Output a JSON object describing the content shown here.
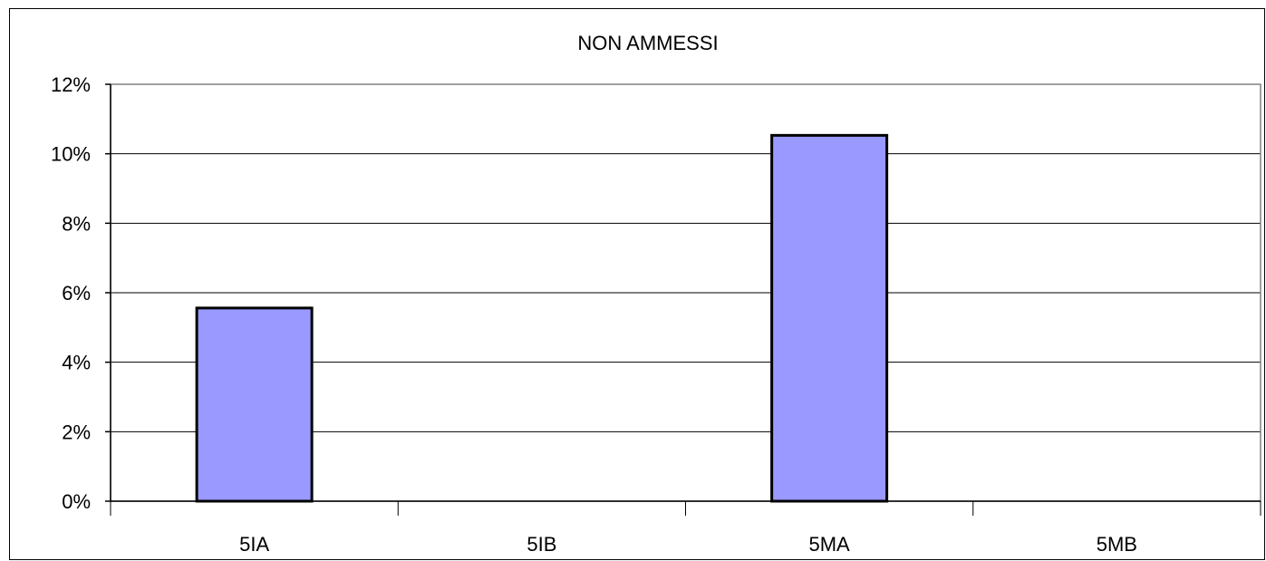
{
  "chart_data": {
    "type": "bar",
    "title": "NON AMMESSI",
    "xlabel": "",
    "ylabel": "",
    "categories": [
      "5IA",
      "5IB",
      "5MA",
      "5MB"
    ],
    "values": [
      5.56,
      0,
      10.53,
      0
    ],
    "ylim": [
      0,
      12
    ],
    "yticks": [
      0,
      2,
      4,
      6,
      8,
      10,
      12
    ],
    "ytick_labels": [
      "0%",
      "2%",
      "4%",
      "6%",
      "8%",
      "10%",
      "12%"
    ],
    "grid": true,
    "legend": "none",
    "colors": {
      "bar_fill": "#9999FF",
      "bar_stroke": "#000000",
      "grid": "#000000",
      "plot_border": "#808080"
    }
  }
}
